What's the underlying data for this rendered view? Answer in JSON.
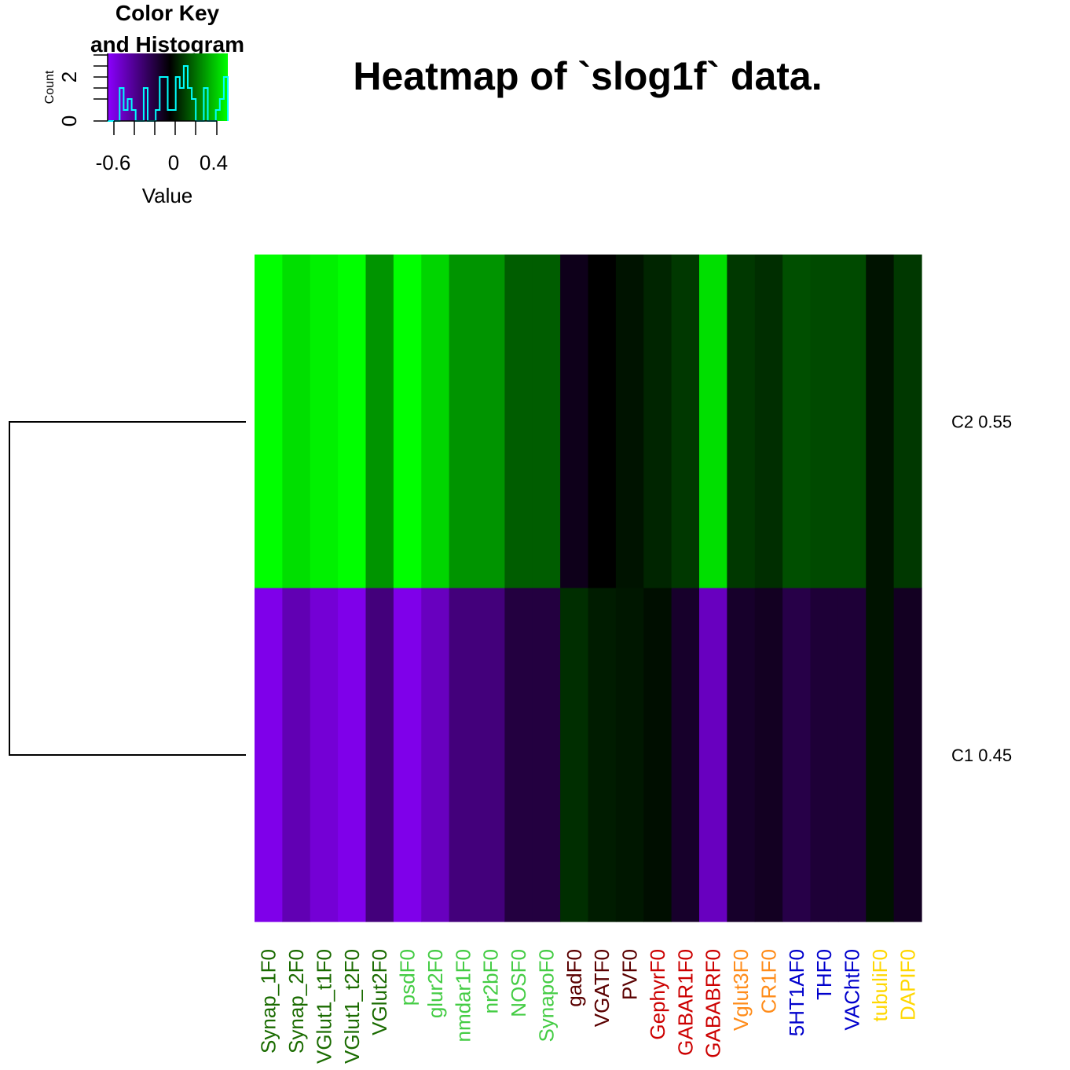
{
  "title": "Heatmap of `slog1f` data.",
  "color_key": {
    "title_line1": "Color Key",
    "title_line2": "and Histogram",
    "x_label": "Value",
    "y_label": "Count",
    "x_ticks": [
      "-0.6",
      "0",
      "0.4"
    ],
    "y_ticks": [
      "0",
      "2"
    ],
    "x_range": [
      -0.7,
      0.55
    ],
    "gradient": [
      "#8b00ff",
      "#000000",
      "#00ff00"
    ],
    "histogram_color": "#00ffff"
  },
  "chart_data": {
    "type": "heatmap",
    "rows": [
      "C2  0.55",
      "C1  0.45"
    ],
    "columns": [
      {
        "label": "Synap_1F0",
        "color": "#1a6b00"
      },
      {
        "label": "Synap_2F0",
        "color": "#1a6b00"
      },
      {
        "label": "VGlut1_t1F0",
        "color": "#1a6b00"
      },
      {
        "label": "VGlut1_t2F0",
        "color": "#1a6b00"
      },
      {
        "label": "VGlut2F0",
        "color": "#1a6b00"
      },
      {
        "label": "psdF0",
        "color": "#44cc44"
      },
      {
        "label": "glur2F0",
        "color": "#44cc44"
      },
      {
        "label": "nmdar1F0",
        "color": "#44cc44"
      },
      {
        "label": "nr2bF0",
        "color": "#44cc44"
      },
      {
        "label": "NOSF0",
        "color": "#44cc44"
      },
      {
        "label": "SynapoF0",
        "color": "#44cc44"
      },
      {
        "label": "gadF0",
        "color": "#5a0000"
      },
      {
        "label": "VGATF0",
        "color": "#5a0000"
      },
      {
        "label": "PVF0",
        "color": "#5a0000"
      },
      {
        "label": "GephyrF0",
        "color": "#cc0000"
      },
      {
        "label": "GABAR1F0",
        "color": "#cc0000"
      },
      {
        "label": "GABABRF0",
        "color": "#cc0000"
      },
      {
        "label": "Vglut3F0",
        "color": "#ff8c1a"
      },
      {
        "label": "CR1F0",
        "color": "#ff8c1a"
      },
      {
        "label": "5HT1AF0",
        "color": "#0000cc"
      },
      {
        "label": "THF0",
        "color": "#0000cc"
      },
      {
        "label": "VAChtF0",
        "color": "#0000cc"
      },
      {
        "label": "tubuliF0",
        "color": "#ffd700"
      },
      {
        "label": "DAPIF0",
        "color": "#ffd700"
      }
    ],
    "values": [
      [
        0.55,
        0.48,
        0.52,
        0.55,
        0.32,
        0.55,
        0.46,
        0.32,
        0.32,
        0.2,
        0.2,
        -0.06,
        0.0,
        0.04,
        0.08,
        0.12,
        0.48,
        0.12,
        0.1,
        0.17,
        0.16,
        0.16,
        0.04,
        0.12
      ],
      [
        -0.55,
        -0.42,
        -0.5,
        -0.55,
        -0.29,
        -0.55,
        -0.45,
        -0.29,
        -0.29,
        -0.15,
        -0.15,
        0.1,
        0.06,
        0.05,
        0.03,
        -0.1,
        -0.45,
        -0.1,
        -0.08,
        -0.17,
        -0.13,
        -0.13,
        0.04,
        -0.08
      ]
    ],
    "value_range": [
      -0.6,
      0.55
    ]
  }
}
